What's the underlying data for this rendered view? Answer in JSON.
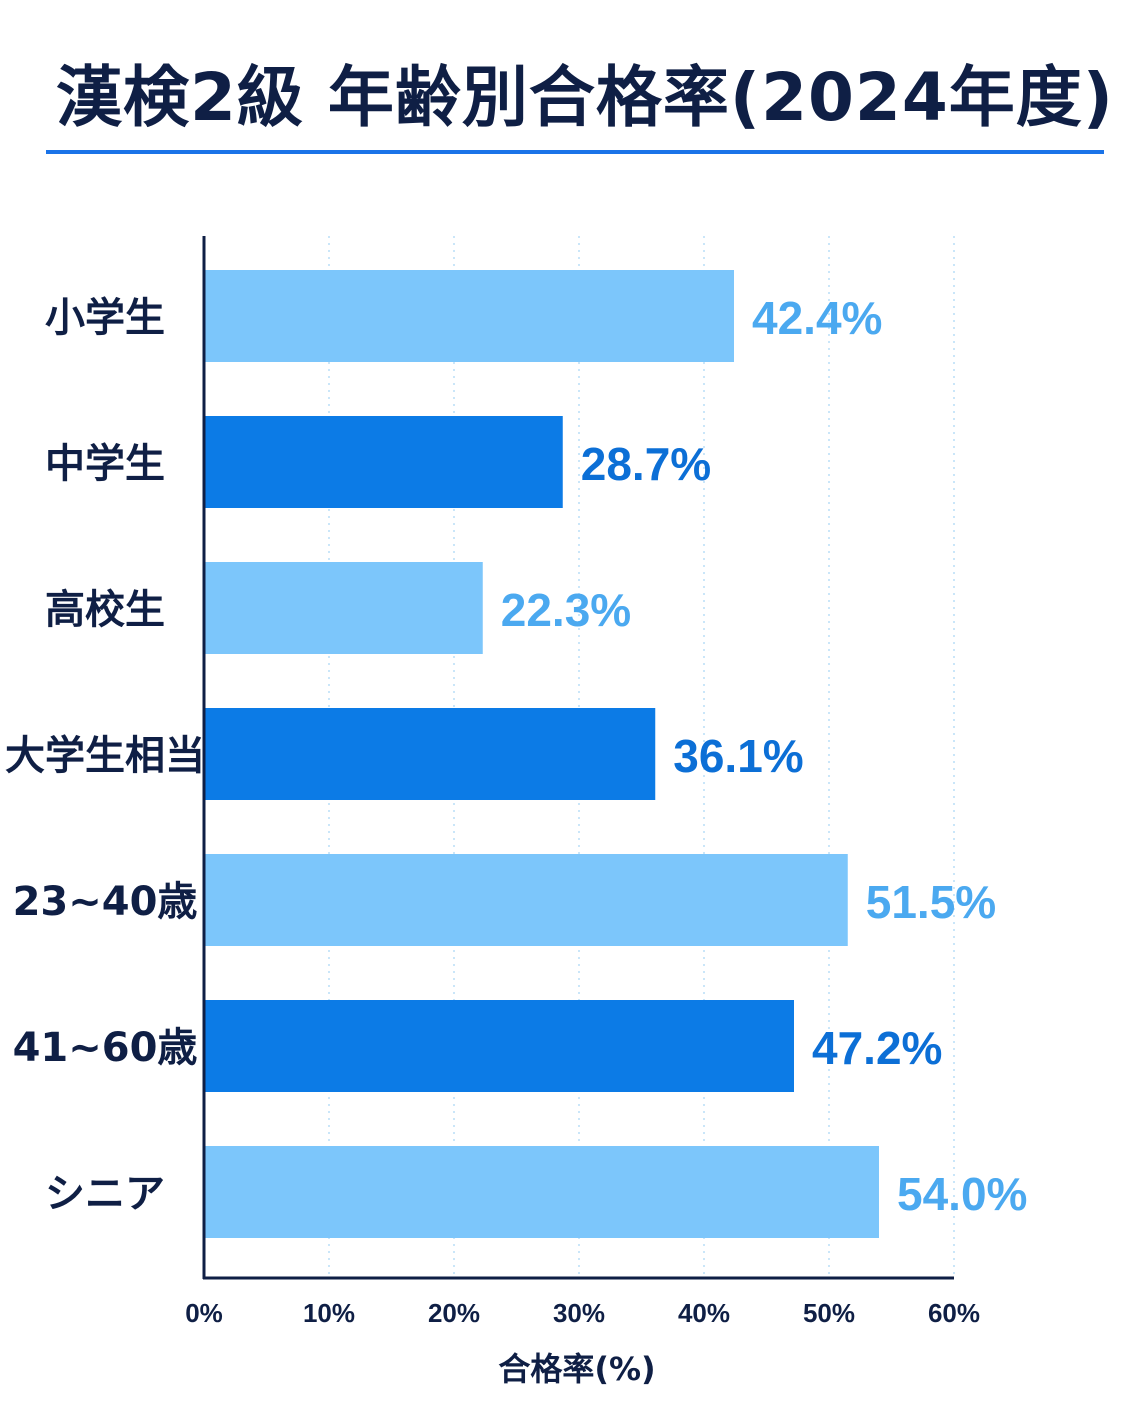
{
  "title": "漢検2級 年齢別合格率(2024年度)",
  "colors": {
    "light_bar": "#7cc6fb",
    "dark_bar": "#0c7be6",
    "light_label": "#4ba9f0",
    "dark_label": "#0c6fd6",
    "axis": "#0f1f45",
    "title": "#0f1f45",
    "grid": "#b8ddf7"
  },
  "chart_data": {
    "type": "bar",
    "orientation": "horizontal",
    "title": "漢検2級 年齢別合格率(2024年度)",
    "xlabel": "合格率(%)",
    "ylabel": "",
    "xlim": [
      0,
      60
    ],
    "xticks": [
      "0%",
      "10%",
      "20%",
      "30%",
      "40%",
      "50%",
      "60%"
    ],
    "grid": "vertical dotted",
    "categories": [
      "小学生",
      "中学生",
      "高校生",
      "大学生相当",
      "23~40歳",
      "41~60歳",
      "シニア"
    ],
    "values": [
      42.4,
      28.7,
      22.3,
      36.1,
      51.5,
      47.2,
      54.0
    ],
    "value_labels": [
      "42.4%",
      "28.7%",
      "22.3%",
      "36.1%",
      "51.5%",
      "47.2%",
      "54.0%"
    ]
  }
}
